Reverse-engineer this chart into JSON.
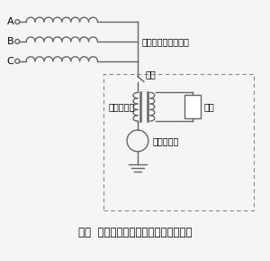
{
  "title": "图四  发电机中性点接地电阻工作原理图",
  "label_A": "A",
  "label_B": "B",
  "label_C": "C",
  "label_stator": "发电机定子三相绕组",
  "label_switch": "刀闸",
  "label_transformer": "接地变压器",
  "label_resistor": "电阻",
  "label_ct": "电流互感器",
  "line_color": "#666666",
  "bg_color": "#f5f5f5",
  "title_fontsize": 8.5,
  "label_fontsize": 7
}
